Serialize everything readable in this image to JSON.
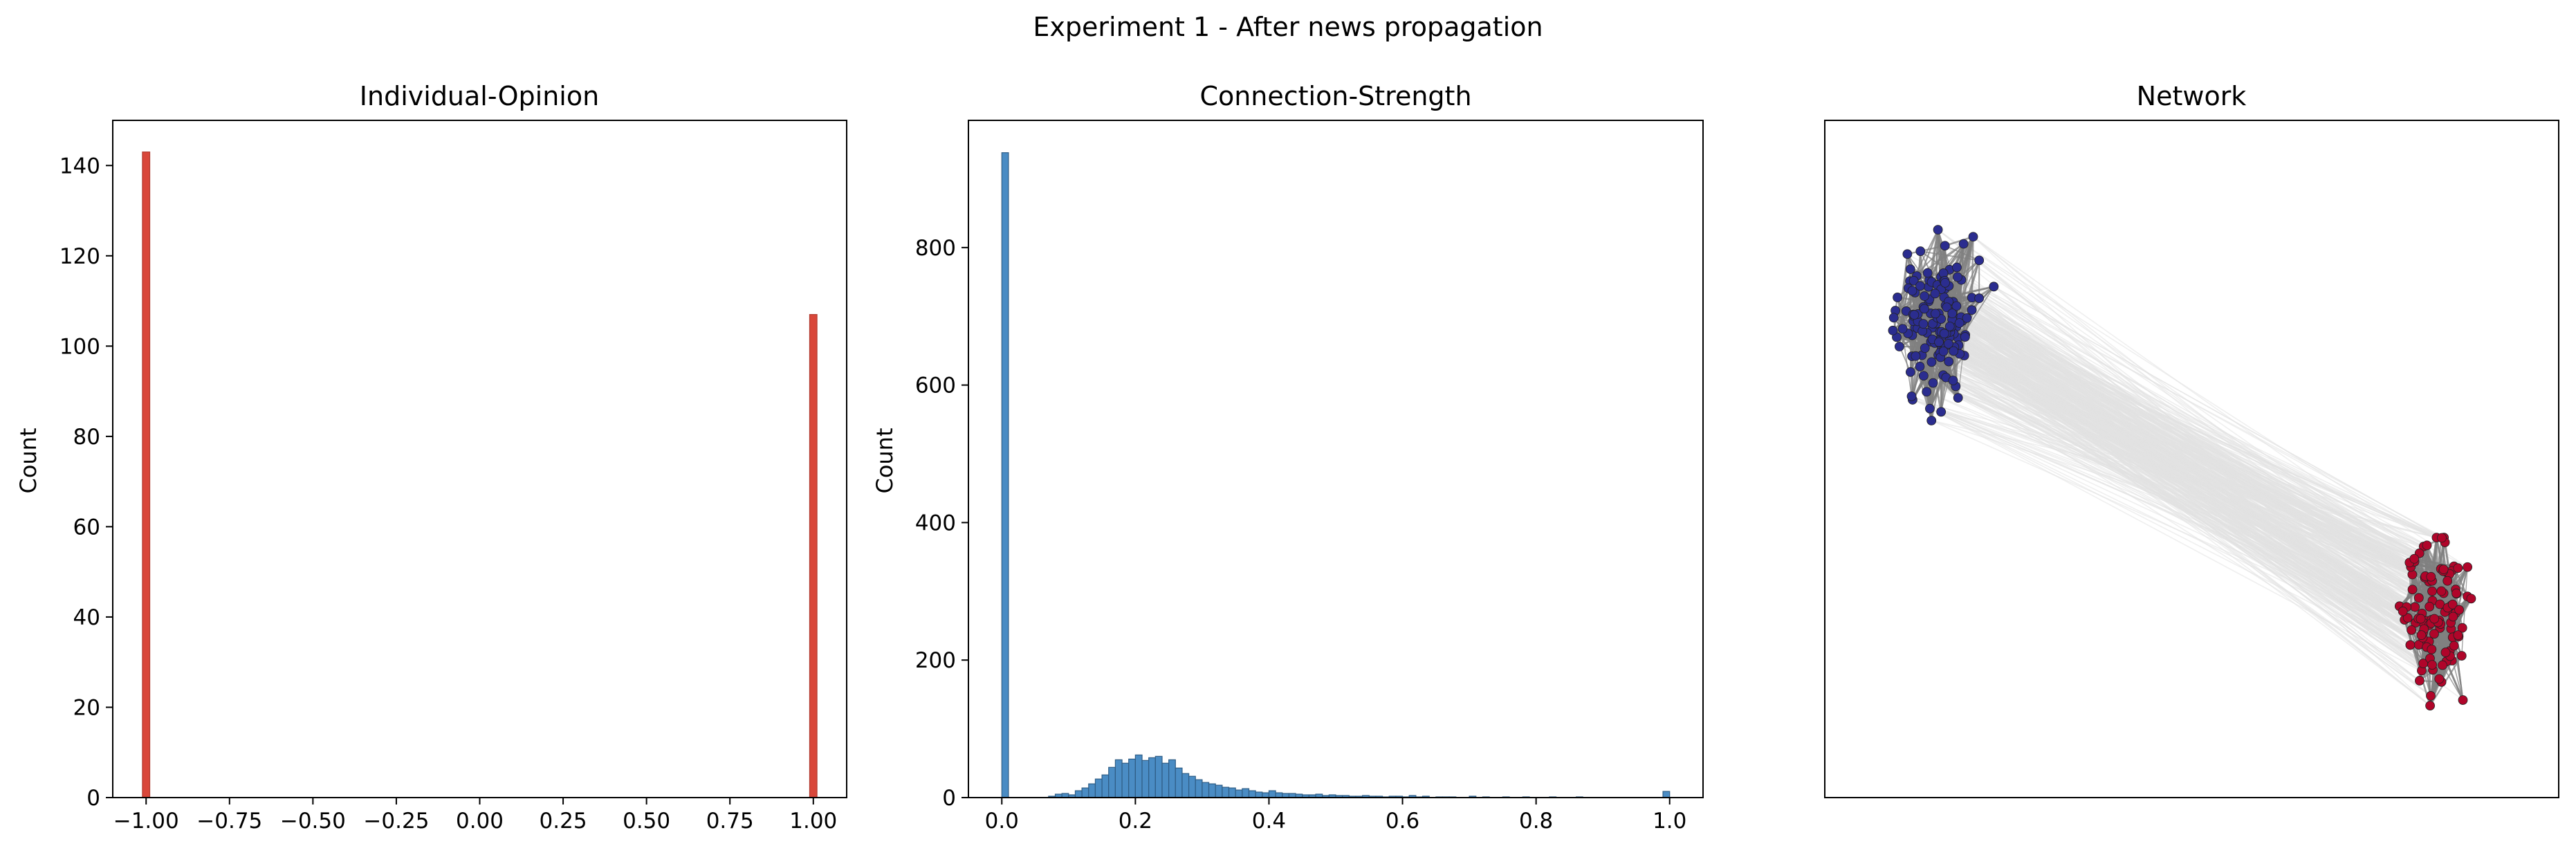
{
  "suptitle": "Experiment 1 - After news propagation",
  "colors": {
    "opinion_bar": "#d9473a",
    "strength_bar": "#4a8cc4",
    "node_blue": "#2b2d8f",
    "node_red": "#b0052a",
    "edge_dark": "#808080",
    "edge_light": "#e2e2e2"
  },
  "chart_data": [
    {
      "type": "bar",
      "title": "Individual-Opinion",
      "xlabel": "",
      "ylabel": "Count",
      "xlim": [
        -1.1,
        1.1
      ],
      "ylim": [
        0,
        150
      ],
      "xticks": [
        "-1.00",
        "-0.75",
        "-0.50",
        "-0.25",
        "0.00",
        "0.25",
        "0.50",
        "0.75",
        "1.00"
      ],
      "yticks": [
        "0",
        "20",
        "40",
        "60",
        "80",
        "100",
        "120",
        "140"
      ],
      "bins": [
        {
          "x": -1.0,
          "count": 143
        },
        {
          "x": 1.0,
          "count": 107
        }
      ]
    },
    {
      "type": "bar",
      "title": "Connection-Strength",
      "xlabel": "",
      "ylabel": "Count",
      "xlim": [
        -0.05,
        1.05
      ],
      "ylim": [
        0,
        985
      ],
      "xticks": [
        "0.0",
        "0.2",
        "0.4",
        "0.6",
        "0.8",
        "1.0"
      ],
      "yticks": [
        "0",
        "200",
        "400",
        "600",
        "800"
      ],
      "bin_width": 0.01,
      "bins": [
        {
          "x": 0.0,
          "count": 938
        },
        {
          "x": 0.07,
          "count": 2
        },
        {
          "x": 0.08,
          "count": 5
        },
        {
          "x": 0.09,
          "count": 6
        },
        {
          "x": 0.1,
          "count": 4
        },
        {
          "x": 0.11,
          "count": 10
        },
        {
          "x": 0.12,
          "count": 14
        },
        {
          "x": 0.13,
          "count": 20
        },
        {
          "x": 0.14,
          "count": 27
        },
        {
          "x": 0.15,
          "count": 33
        },
        {
          "x": 0.16,
          "count": 44
        },
        {
          "x": 0.17,
          "count": 55
        },
        {
          "x": 0.18,
          "count": 50
        },
        {
          "x": 0.19,
          "count": 56
        },
        {
          "x": 0.2,
          "count": 62
        },
        {
          "x": 0.21,
          "count": 54
        },
        {
          "x": 0.22,
          "count": 58
        },
        {
          "x": 0.23,
          "count": 60
        },
        {
          "x": 0.24,
          "count": 50
        },
        {
          "x": 0.25,
          "count": 55
        },
        {
          "x": 0.26,
          "count": 43
        },
        {
          "x": 0.27,
          "count": 35
        },
        {
          "x": 0.28,
          "count": 31
        },
        {
          "x": 0.29,
          "count": 26
        },
        {
          "x": 0.3,
          "count": 22
        },
        {
          "x": 0.31,
          "count": 20
        },
        {
          "x": 0.32,
          "count": 18
        },
        {
          "x": 0.33,
          "count": 15
        },
        {
          "x": 0.34,
          "count": 14
        },
        {
          "x": 0.35,
          "count": 11
        },
        {
          "x": 0.36,
          "count": 13
        },
        {
          "x": 0.37,
          "count": 10
        },
        {
          "x": 0.38,
          "count": 8
        },
        {
          "x": 0.39,
          "count": 7
        },
        {
          "x": 0.4,
          "count": 10
        },
        {
          "x": 0.41,
          "count": 7
        },
        {
          "x": 0.42,
          "count": 6
        },
        {
          "x": 0.43,
          "count": 6
        },
        {
          "x": 0.44,
          "count": 5
        },
        {
          "x": 0.45,
          "count": 4
        },
        {
          "x": 0.46,
          "count": 4
        },
        {
          "x": 0.47,
          "count": 5
        },
        {
          "x": 0.48,
          "count": 3
        },
        {
          "x": 0.49,
          "count": 4
        },
        {
          "x": 0.5,
          "count": 3
        },
        {
          "x": 0.51,
          "count": 3
        },
        {
          "x": 0.52,
          "count": 2
        },
        {
          "x": 0.53,
          "count": 2
        },
        {
          "x": 0.54,
          "count": 3
        },
        {
          "x": 0.55,
          "count": 2
        },
        {
          "x": 0.56,
          "count": 2
        },
        {
          "x": 0.57,
          "count": 1
        },
        {
          "x": 0.58,
          "count": 2
        },
        {
          "x": 0.59,
          "count": 2
        },
        {
          "x": 0.6,
          "count": 1
        },
        {
          "x": 0.61,
          "count": 3
        },
        {
          "x": 0.62,
          "count": 1
        },
        {
          "x": 0.63,
          "count": 2
        },
        {
          "x": 0.65,
          "count": 1
        },
        {
          "x": 0.66,
          "count": 1
        },
        {
          "x": 0.67,
          "count": 1
        },
        {
          "x": 0.7,
          "count": 2
        },
        {
          "x": 0.72,
          "count": 1
        },
        {
          "x": 0.75,
          "count": 1
        },
        {
          "x": 0.78,
          "count": 1
        },
        {
          "x": 0.82,
          "count": 1
        },
        {
          "x": 0.86,
          "count": 1
        },
        {
          "x": 0.99,
          "count": 9
        }
      ]
    },
    {
      "type": "network",
      "title": "Network",
      "communities": [
        {
          "color": "blue",
          "node_count": 143
        },
        {
          "color": "red",
          "node_count": 107
        }
      ]
    }
  ]
}
